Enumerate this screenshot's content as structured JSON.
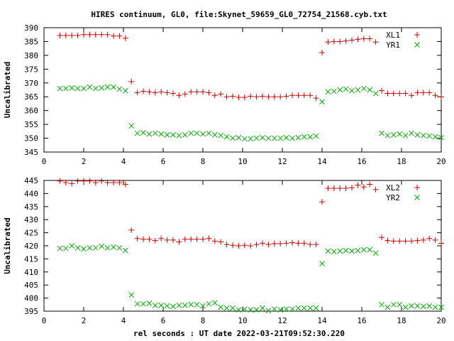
{
  "chart_data": [
    {
      "type": "scatter",
      "title": "HIRES continuum, GL0, file:Skynet_59659_GL0_72754_21568.cyb.txt",
      "xlabel": "",
      "ylabel": "Uncalibrated",
      "xlim": [
        0,
        20
      ],
      "ylim": [
        345,
        390
      ],
      "xticks": [
        0,
        2,
        4,
        6,
        8,
        10,
        12,
        14,
        16,
        18,
        20
      ],
      "yticks": [
        345,
        350,
        355,
        360,
        365,
        370,
        375,
        380,
        385,
        390
      ],
      "legend_position": "top-right",
      "grid": false,
      "series": [
        {
          "name": "XL1",
          "marker": "plus",
          "color": "#cc0000",
          "points": [
            [
              0.8,
              387.2
            ],
            [
              1.1,
              387.2
            ],
            [
              1.4,
              387.2
            ],
            [
              1.7,
              387.2
            ],
            [
              2.0,
              387.5
            ],
            [
              2.3,
              387.5
            ],
            [
              2.6,
              387.5
            ],
            [
              2.9,
              387.5
            ],
            [
              3.2,
              387.5
            ],
            [
              3.5,
              387.0
            ],
            [
              3.8,
              387.0
            ],
            [
              4.1,
              386.2
            ],
            [
              4.4,
              370.5
            ],
            [
              4.7,
              366.5
            ],
            [
              5.0,
              367.0
            ],
            [
              5.3,
              366.8
            ],
            [
              5.6,
              366.5
            ],
            [
              5.9,
              366.8
            ],
            [
              6.2,
              366.5
            ],
            [
              6.5,
              366.2
            ],
            [
              6.8,
              365.5
            ],
            [
              7.1,
              366.0
            ],
            [
              7.4,
              366.8
            ],
            [
              7.7,
              366.8
            ],
            [
              8.0,
              366.8
            ],
            [
              8.3,
              366.5
            ],
            [
              8.6,
              365.5
            ],
            [
              8.9,
              366.0
            ],
            [
              9.2,
              365.0
            ],
            [
              9.5,
              365.2
            ],
            [
              9.8,
              364.8
            ],
            [
              10.1,
              364.8
            ],
            [
              10.4,
              365.2
            ],
            [
              10.7,
              365.0
            ],
            [
              11.0,
              365.2
            ],
            [
              11.3,
              365.0
            ],
            [
              11.6,
              365.0
            ],
            [
              11.9,
              365.0
            ],
            [
              12.2,
              365.2
            ],
            [
              12.5,
              365.5
            ],
            [
              12.8,
              365.5
            ],
            [
              13.1,
              365.5
            ],
            [
              13.4,
              365.5
            ],
            [
              13.7,
              364.5
            ],
            [
              14.0,
              381.0
            ],
            [
              14.3,
              384.8
            ],
            [
              14.6,
              385.0
            ],
            [
              14.9,
              385.0
            ],
            [
              15.2,
              385.2
            ],
            [
              15.5,
              385.5
            ],
            [
              15.8,
              385.8
            ],
            [
              16.1,
              386.0
            ],
            [
              16.4,
              386.0
            ],
            [
              16.7,
              384.8
            ],
            [
              17.0,
              367.2
            ],
            [
              17.3,
              366.2
            ],
            [
              17.6,
              366.2
            ],
            [
              17.9,
              366.2
            ],
            [
              18.2,
              366.2
            ],
            [
              18.5,
              365.5
            ],
            [
              18.8,
              366.5
            ],
            [
              19.1,
              366.5
            ],
            [
              19.4,
              366.5
            ],
            [
              19.7,
              365.5
            ],
            [
              20.0,
              365.0
            ]
          ]
        },
        {
          "name": "YR1",
          "marker": "cross",
          "color": "#00aa00",
          "points": [
            [
              0.8,
              368.0
            ],
            [
              1.1,
              368.0
            ],
            [
              1.4,
              368.2
            ],
            [
              1.7,
              368.0
            ],
            [
              2.0,
              368.0
            ],
            [
              2.3,
              368.5
            ],
            [
              2.6,
              368.0
            ],
            [
              2.9,
              368.2
            ],
            [
              3.2,
              368.5
            ],
            [
              3.5,
              368.5
            ],
            [
              3.8,
              367.8
            ],
            [
              4.1,
              367.2
            ],
            [
              4.4,
              354.5
            ],
            [
              4.7,
              351.8
            ],
            [
              5.0,
              352.0
            ],
            [
              5.3,
              351.5
            ],
            [
              5.6,
              351.8
            ],
            [
              5.9,
              351.5
            ],
            [
              6.2,
              351.2
            ],
            [
              6.5,
              351.2
            ],
            [
              6.8,
              351.0
            ],
            [
              7.1,
              351.2
            ],
            [
              7.4,
              351.8
            ],
            [
              7.7,
              351.8
            ],
            [
              8.0,
              351.5
            ],
            [
              8.3,
              351.8
            ],
            [
              8.6,
              351.2
            ],
            [
              8.9,
              351.0
            ],
            [
              9.2,
              350.5
            ],
            [
              9.5,
              350.0
            ],
            [
              9.8,
              350.2
            ],
            [
              10.1,
              349.8
            ],
            [
              10.4,
              349.8
            ],
            [
              10.7,
              350.0
            ],
            [
              11.0,
              350.2
            ],
            [
              11.3,
              350.0
            ],
            [
              11.6,
              350.0
            ],
            [
              11.9,
              350.0
            ],
            [
              12.2,
              350.2
            ],
            [
              12.5,
              350.0
            ],
            [
              12.8,
              350.2
            ],
            [
              13.1,
              350.5
            ],
            [
              13.4,
              350.5
            ],
            [
              13.7,
              350.8
            ],
            [
              14.0,
              363.2
            ],
            [
              14.3,
              366.8
            ],
            [
              14.6,
              367.0
            ],
            [
              14.9,
              367.5
            ],
            [
              15.2,
              367.8
            ],
            [
              15.5,
              367.2
            ],
            [
              15.8,
              367.5
            ],
            [
              16.1,
              368.0
            ],
            [
              16.4,
              367.5
            ],
            [
              16.7,
              366.2
            ],
            [
              17.0,
              351.8
            ],
            [
              17.3,
              351.0
            ],
            [
              17.6,
              351.2
            ],
            [
              17.9,
              351.5
            ],
            [
              18.2,
              351.0
            ],
            [
              18.5,
              351.8
            ],
            [
              18.8,
              351.2
            ],
            [
              19.1,
              351.0
            ],
            [
              19.4,
              350.8
            ],
            [
              19.7,
              350.5
            ],
            [
              20.0,
              350.2
            ]
          ]
        }
      ]
    },
    {
      "type": "scatter",
      "title": "",
      "xlabel": "rel seconds : UT date 2022-03-21T09:52:30.220",
      "ylabel": "Uncalibrated",
      "xlim": [
        0,
        20
      ],
      "ylim": [
        395,
        445
      ],
      "xticks": [
        0,
        2,
        4,
        6,
        8,
        10,
        12,
        14,
        16,
        18,
        20
      ],
      "yticks": [
        395,
        400,
        405,
        410,
        415,
        420,
        425,
        430,
        435,
        440,
        445
      ],
      "legend_position": "top-right",
      "grid": false,
      "series": [
        {
          "name": "XL2",
          "marker": "plus",
          "color": "#cc0000",
          "points": [
            [
              0.8,
              444.8
            ],
            [
              1.1,
              444.2
            ],
            [
              1.4,
              443.8
            ],
            [
              1.7,
              444.8
            ],
            [
              2.0,
              444.8
            ],
            [
              2.3,
              444.8
            ],
            [
              2.6,
              444.2
            ],
            [
              2.9,
              444.8
            ],
            [
              3.2,
              444.2
            ],
            [
              3.5,
              444.2
            ],
            [
              3.8,
              444.2
            ],
            [
              4.1,
              443.5
            ],
            [
              4.4,
              426.0
            ],
            [
              4.7,
              422.8
            ],
            [
              5.0,
              422.5
            ],
            [
              5.3,
              422.5
            ],
            [
              5.6,
              422.0
            ],
            [
              5.9,
              422.8
            ],
            [
              6.2,
              422.2
            ],
            [
              6.5,
              422.2
            ],
            [
              6.8,
              421.5
            ],
            [
              7.1,
              422.5
            ],
            [
              7.4,
              422.5
            ],
            [
              7.7,
              422.5
            ],
            [
              8.0,
              422.5
            ],
            [
              8.3,
              422.8
            ],
            [
              8.6,
              421.8
            ],
            [
              8.9,
              421.5
            ],
            [
              9.2,
              420.5
            ],
            [
              9.5,
              420.2
            ],
            [
              9.8,
              420.0
            ],
            [
              10.1,
              420.2
            ],
            [
              10.4,
              420.0
            ],
            [
              10.7,
              420.5
            ],
            [
              11.0,
              421.0
            ],
            [
              11.3,
              420.5
            ],
            [
              11.6,
              420.8
            ],
            [
              11.9,
              420.8
            ],
            [
              12.2,
              421.0
            ],
            [
              12.5,
              421.2
            ],
            [
              12.8,
              421.0
            ],
            [
              13.1,
              421.0
            ],
            [
              13.4,
              420.5
            ],
            [
              13.7,
              420.5
            ],
            [
              14.0,
              436.8
            ],
            [
              14.3,
              442.0
            ],
            [
              14.6,
              442.0
            ],
            [
              14.9,
              442.0
            ],
            [
              15.2,
              442.0
            ],
            [
              15.5,
              442.2
            ],
            [
              15.8,
              443.2
            ],
            [
              16.1,
              442.5
            ],
            [
              16.4,
              443.5
            ],
            [
              16.7,
              441.5
            ],
            [
              17.0,
              423.2
            ],
            [
              17.3,
              422.0
            ],
            [
              17.6,
              421.8
            ],
            [
              17.9,
              421.8
            ],
            [
              18.2,
              421.8
            ],
            [
              18.5,
              421.8
            ],
            [
              18.8,
              422.0
            ],
            [
              19.1,
              422.2
            ],
            [
              19.4,
              422.8
            ],
            [
              19.7,
              422.2
            ],
            [
              20.0,
              421.0
            ]
          ]
        },
        {
          "name": "YR2",
          "marker": "cross",
          "color": "#00aa00",
          "points": [
            [
              0.8,
              419.0
            ],
            [
              1.1,
              419.0
            ],
            [
              1.4,
              420.0
            ],
            [
              1.7,
              419.2
            ],
            [
              2.0,
              418.8
            ],
            [
              2.3,
              419.2
            ],
            [
              2.6,
              419.2
            ],
            [
              2.9,
              419.8
            ],
            [
              3.2,
              419.2
            ],
            [
              3.5,
              419.5
            ],
            [
              3.8,
              419.2
            ],
            [
              4.1,
              418.2
            ],
            [
              4.4,
              401.2
            ],
            [
              4.7,
              397.8
            ],
            [
              5.0,
              397.8
            ],
            [
              5.3,
              398.0
            ],
            [
              5.6,
              397.2
            ],
            [
              5.9,
              397.2
            ],
            [
              6.2,
              397.0
            ],
            [
              6.5,
              396.8
            ],
            [
              6.8,
              397.2
            ],
            [
              7.1,
              397.2
            ],
            [
              7.4,
              397.5
            ],
            [
              7.7,
              397.5
            ],
            [
              8.0,
              397.0
            ],
            [
              8.3,
              397.8
            ],
            [
              8.6,
              398.2
            ],
            [
              8.9,
              396.5
            ],
            [
              9.2,
              396.2
            ],
            [
              9.5,
              396.2
            ],
            [
              9.8,
              395.5
            ],
            [
              10.1,
              395.8
            ],
            [
              10.4,
              395.5
            ],
            [
              10.7,
              395.5
            ],
            [
              11.0,
              396.2
            ],
            [
              11.3,
              395.2
            ],
            [
              11.6,
              395.8
            ],
            [
              11.9,
              395.5
            ],
            [
              12.2,
              395.8
            ],
            [
              12.5,
              395.8
            ],
            [
              12.8,
              396.2
            ],
            [
              13.1,
              396.2
            ],
            [
              13.4,
              396.2
            ],
            [
              13.7,
              396.2
            ],
            [
              14.0,
              413.2
            ],
            [
              14.3,
              418.0
            ],
            [
              14.6,
              417.8
            ],
            [
              14.9,
              418.0
            ],
            [
              15.2,
              418.2
            ],
            [
              15.5,
              418.0
            ],
            [
              15.8,
              418.2
            ],
            [
              16.1,
              418.5
            ],
            [
              16.4,
              418.5
            ],
            [
              16.7,
              417.2
            ],
            [
              17.0,
              397.5
            ],
            [
              17.3,
              396.5
            ],
            [
              17.6,
              397.5
            ],
            [
              17.9,
              397.5
            ],
            [
              18.2,
              396.5
            ],
            [
              18.5,
              397.0
            ],
            [
              18.8,
              397.0
            ],
            [
              19.1,
              396.8
            ],
            [
              19.4,
              397.0
            ],
            [
              19.7,
              396.5
            ],
            [
              20.0,
              396.5
            ]
          ]
        }
      ]
    }
  ]
}
